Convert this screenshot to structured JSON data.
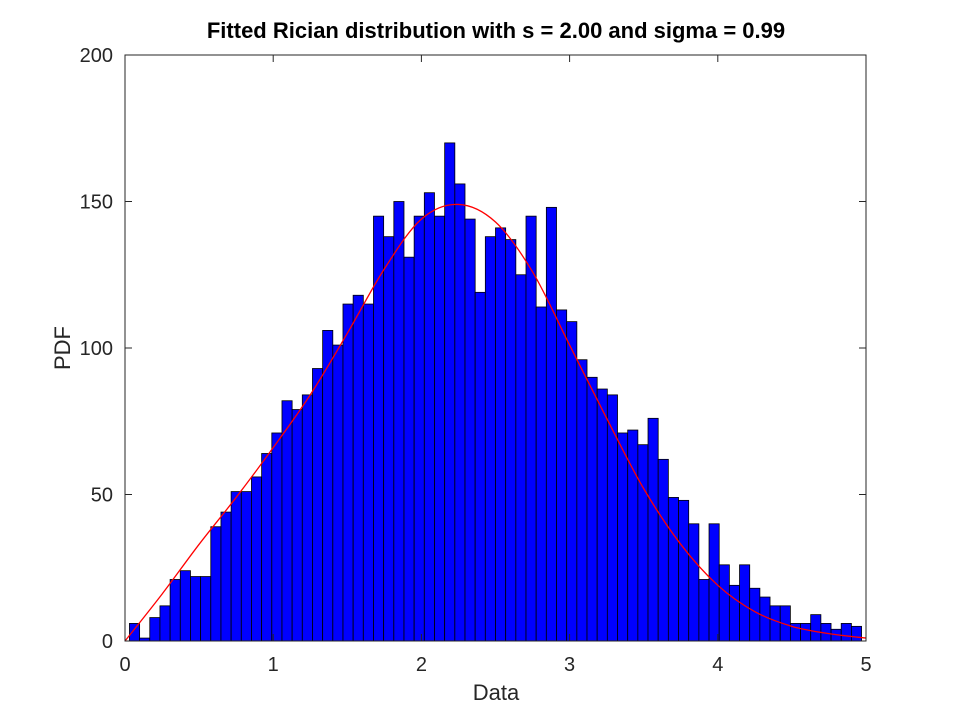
{
  "chart_data": {
    "type": "bar",
    "title": "Fitted Rician distribution with s = 2.00 and sigma = 0.99",
    "xlabel": "Data",
    "ylabel": "PDF",
    "xlim": [
      0,
      5
    ],
    "ylim": [
      0,
      200
    ],
    "xticks": [
      "0",
      "1",
      "2",
      "3",
      "4",
      "5"
    ],
    "yticks": [
      "0",
      "50",
      "100",
      "150",
      "200"
    ],
    "grid": false,
    "bin_edges_range": [
      0.03,
      4.97
    ],
    "bar_color": "#0000ff",
    "bar_edge_color": "#000000",
    "fit_color": "#ff0000",
    "series": [
      {
        "kind": "histogram",
        "values": [
          6,
          1,
          8,
          12,
          21,
          24,
          22,
          22,
          39,
          44,
          51,
          51,
          56,
          64,
          71,
          82,
          79,
          84,
          93,
          106,
          101,
          115,
          118,
          115,
          145,
          138,
          150,
          131,
          145,
          153,
          145,
          170,
          156,
          144,
          119,
          138,
          141,
          137,
          125,
          145,
          114,
          148,
          113,
          109,
          96,
          90,
          86,
          84,
          71,
          72,
          67,
          76,
          62,
          49,
          48,
          40,
          21,
          40,
          26,
          19,
          26,
          18,
          15,
          12,
          12,
          6,
          6,
          9,
          6,
          4,
          6,
          5
        ]
      },
      {
        "kind": "fit-curve",
        "s": 2.0,
        "sigma": 0.99,
        "x": [
          0,
          0.25,
          0.5,
          0.75,
          1,
          1.25,
          1.5,
          1.75,
          2,
          2.25,
          2.5,
          2.75,
          3,
          3.25,
          3.5,
          3.75,
          4,
          4.25,
          4.5,
          4.75,
          5
        ],
        "y": [
          0,
          16,
          33,
          49,
          66,
          84,
          105,
          127,
          144,
          149,
          143,
          126,
          101,
          76,
          52,
          33,
          19,
          10,
          5,
          2.5,
          1
        ]
      }
    ]
  }
}
